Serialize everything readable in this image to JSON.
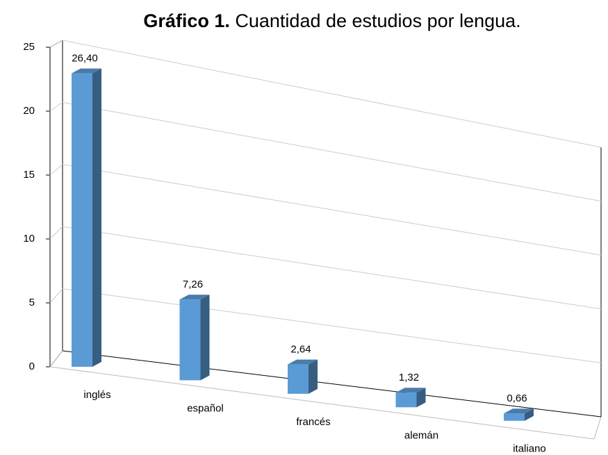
{
  "chart_data": {
    "type": "bar3d",
    "title_label": "Gráfico 1.",
    "title": "Cuantidad de estudios por lengua.",
    "categories": [
      "inglés",
      "español",
      "francés",
      "alemán",
      "italiano"
    ],
    "values": [
      26.4,
      7.26,
      2.64,
      1.32,
      0.66
    ],
    "value_labels": [
      "26,40",
      "7,26",
      "2,64",
      "1,32",
      "0,66"
    ],
    "color": "#5b9bd5",
    "ylim": [
      0,
      25
    ],
    "yticks": [
      0,
      5,
      10,
      15,
      20,
      25
    ],
    "grid": true
  }
}
